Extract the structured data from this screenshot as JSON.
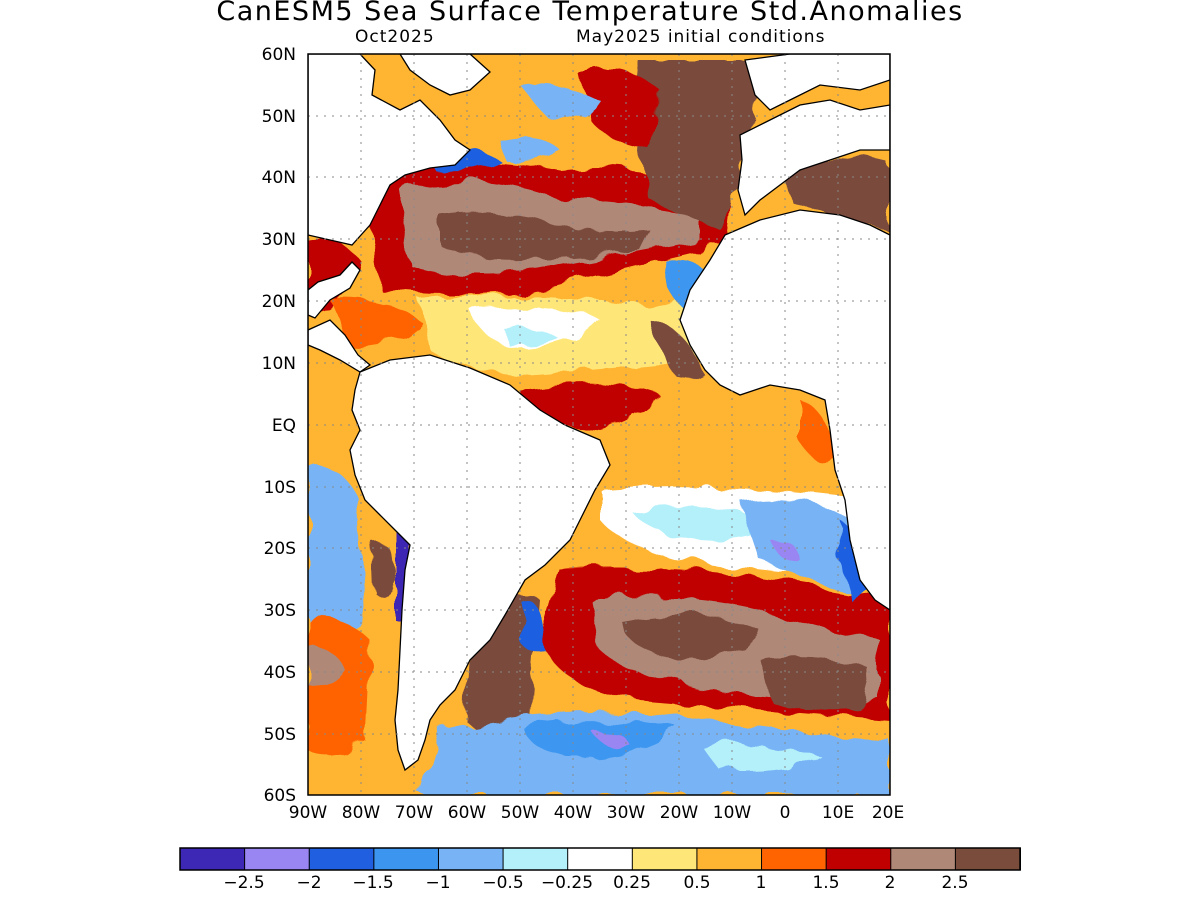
{
  "title": "CanESM5 Sea Surface Temperature Std.Anomalies",
  "subtitle_left": "Oct2025",
  "subtitle_right": "May2025 initial conditions",
  "map": {
    "lon_range": [
      -90,
      20
    ],
    "lat_range": [
      -60,
      60
    ],
    "lat_labels": [
      "60N",
      "50N",
      "40N",
      "30N",
      "20N",
      "10N",
      "EQ",
      "10S",
      "20S",
      "30S",
      "40S",
      "50S",
      "60S"
    ],
    "lon_labels": [
      "90W",
      "80W",
      "70W",
      "60W",
      "50W",
      "40W",
      "30W",
      "20W",
      "10W",
      "0",
      "10E",
      "20E"
    ],
    "gridlines": "dotted"
  },
  "colorbar": {
    "colors": [
      "#3c28b4",
      "#9a86f2",
      "#1f5fe0",
      "#3c96f0",
      "#78b4f5",
      "#b4f0fa",
      "#ffffff",
      "#ffe678",
      "#ffb432",
      "#ff6400",
      "#c00000",
      "#b08878",
      "#7a4c3c"
    ],
    "tick_labels": [
      "−2.5",
      "−2",
      "−1.5",
      "−1",
      "−0.5",
      "−0.25",
      "0.25",
      "0.5",
      "1",
      "1.5",
      "2",
      "2.5"
    ]
  },
  "legend_colors": {
    "land": "#ffffff",
    "coastline": "#000000"
  }
}
